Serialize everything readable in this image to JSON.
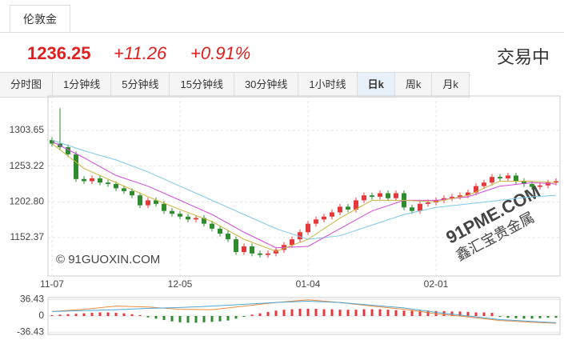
{
  "header": {
    "tab": "伦敦金",
    "price": "1236.25",
    "change": "+11.26",
    "change_pct": "+0.91%",
    "status": "交易中"
  },
  "tabs": [
    "分时图",
    "1分钟线",
    "5分钟线",
    "15分钟线",
    "30分钟线",
    "1小时线",
    "日k",
    "周k",
    "月k"
  ],
  "active_tab": 6,
  "chart_data": [
    {
      "type": "candlestick",
      "up_color": "#e4393c",
      "down_color": "#2e8b2e",
      "categories": [
        "11-07",
        null,
        null,
        null,
        null,
        null,
        null,
        null,
        null,
        null,
        null,
        null,
        null,
        null,
        null,
        null,
        "12-05",
        null,
        null,
        null,
        null,
        null,
        null,
        null,
        null,
        null,
        null,
        null,
        null,
        null,
        null,
        null,
        "01-04",
        null,
        null,
        null,
        null,
        null,
        null,
        null,
        null,
        null,
        null,
        null,
        null,
        null,
        null,
        null,
        "02-01",
        null,
        null,
        null,
        null,
        null,
        null,
        null,
        null,
        null,
        null,
        null,
        null,
        null,
        null,
        null
      ],
      "open": [
        1290,
        1285,
        1280,
        1270,
        1235,
        1232,
        1236,
        1230,
        1228,
        1222,
        1218,
        1212,
        1198,
        1205,
        1200,
        1190,
        1186,
        1182,
        1178,
        1180,
        1172,
        1165,
        1158,
        1150,
        1132,
        1140,
        1130,
        1128,
        1130,
        1135,
        1142,
        1150,
        1160,
        1172,
        1178,
        1182,
        1188,
        1196,
        1192,
        1205,
        1212,
        1210,
        1215,
        1208,
        1215,
        1195,
        1190,
        1200,
        1202,
        1205,
        1208,
        1210,
        1212,
        1216,
        1225,
        1230,
        1238,
        1236,
        1240,
        1232,
        1228,
        1224,
        1226,
        1230
      ],
      "close": [
        1285,
        1280,
        1270,
        1235,
        1232,
        1236,
        1230,
        1228,
        1222,
        1218,
        1212,
        1198,
        1205,
        1200,
        1190,
        1186,
        1182,
        1178,
        1180,
        1172,
        1165,
        1158,
        1150,
        1132,
        1140,
        1130,
        1128,
        1130,
        1135,
        1142,
        1150,
        1160,
        1172,
        1178,
        1182,
        1188,
        1196,
        1192,
        1205,
        1212,
        1210,
        1215,
        1208,
        1215,
        1195,
        1190,
        1200,
        1202,
        1205,
        1208,
        1210,
        1212,
        1216,
        1225,
        1230,
        1238,
        1236,
        1240,
        1232,
        1228,
        1224,
        1226,
        1230,
        1232
      ],
      "high": [
        1294,
        1335,
        1284,
        1274,
        1239,
        1240,
        1240,
        1234,
        1232,
        1226,
        1222,
        1216,
        1209,
        1209,
        1204,
        1194,
        1190,
        1186,
        1184,
        1184,
        1176,
        1169,
        1162,
        1154,
        1144,
        1144,
        1134,
        1134,
        1139,
        1146,
        1154,
        1164,
        1176,
        1182,
        1186,
        1192,
        1200,
        1200,
        1209,
        1216,
        1216,
        1219,
        1219,
        1219,
        1219,
        1199,
        1204,
        1206,
        1209,
        1212,
        1214,
        1216,
        1220,
        1229,
        1234,
        1242,
        1242,
        1244,
        1244,
        1236,
        1232,
        1230,
        1234,
        1236
      ],
      "low": [
        1281,
        1276,
        1266,
        1231,
        1228,
        1228,
        1226,
        1224,
        1218,
        1214,
        1208,
        1194,
        1194,
        1196,
        1186,
        1182,
        1178,
        1174,
        1174,
        1168,
        1161,
        1154,
        1146,
        1128,
        1128,
        1126,
        1124,
        1124,
        1126,
        1131,
        1138,
        1146,
        1156,
        1168,
        1174,
        1178,
        1184,
        1188,
        1188,
        1201,
        1206,
        1206,
        1204,
        1204,
        1191,
        1186,
        1186,
        1196,
        1198,
        1201,
        1204,
        1206,
        1208,
        1212,
        1221,
        1226,
        1232,
        1232,
        1228,
        1224,
        1220,
        1220,
        1222,
        1226
      ],
      "lines": [
        {
          "color": "#7ec8ec",
          "x": [
            0,
            4,
            8,
            12,
            16,
            20,
            24,
            28,
            32,
            36,
            40,
            44,
            48,
            52,
            56,
            60,
            63
          ],
          "values": [
            1290,
            1275,
            1262,
            1245,
            1225,
            1205,
            1185,
            1165,
            1150,
            1155,
            1170,
            1185,
            1195,
            1200,
            1205,
            1210,
            1212
          ]
        },
        {
          "color": "#d24ad8",
          "x": [
            0,
            4,
            8,
            12,
            16,
            20,
            24,
            28,
            32,
            36,
            40,
            44,
            48,
            52,
            56,
            60,
            63
          ],
          "values": [
            1288,
            1265,
            1240,
            1225,
            1205,
            1185,
            1160,
            1138,
            1140,
            1165,
            1190,
            1205,
            1205,
            1210,
            1225,
            1230,
            1228
          ]
        },
        {
          "color": "#c8b43c",
          "x": [
            0,
            4,
            8,
            12,
            16,
            20,
            24,
            28,
            32,
            36,
            40,
            44,
            48,
            52,
            56,
            60,
            63
          ],
          "values": [
            1285,
            1250,
            1230,
            1210,
            1192,
            1175,
            1150,
            1133,
            1150,
            1180,
            1205,
            1205,
            1203,
            1212,
            1232,
            1232,
            1230
          ]
        }
      ],
      "ylim": [
        1098.2,
        1352.2
      ],
      "yticks": [
        1152.37,
        {
          "value": 1202.8,
          "label": "1202.80"
        },
        1253.22,
        1303.65
      ],
      "grid": true,
      "watermarks": [
        "© 91GUOXIN.COM",
        "91PME.COM",
        "鑫汇宝贵金属"
      ]
    },
    {
      "type": "macd",
      "up_color": "#e4393c",
      "down_color": "#2e8b2e",
      "values": [
        2,
        3,
        4,
        5,
        6,
        7,
        8,
        8,
        7,
        6,
        4,
        2,
        -3,
        -6,
        -9,
        -12,
        -14,
        -15,
        -15,
        -14,
        -13,
        -12,
        -10,
        -6,
        -2,
        3,
        6,
        9,
        12,
        14,
        15,
        16,
        16,
        16,
        15,
        15,
        14,
        14,
        14,
        15,
        15,
        15,
        14,
        13,
        12,
        12,
        12,
        12,
        11,
        11,
        10,
        10,
        9,
        8,
        8,
        7,
        -2,
        -4,
        -5,
        -6,
        -6,
        -5,
        -4,
        -4
      ],
      "lines": [
        {
          "color": "#f08c3c",
          "x": [
            0,
            4,
            8,
            12,
            16,
            20,
            24,
            28,
            32,
            36,
            40,
            44,
            48,
            52,
            56,
            60,
            63
          ],
          "values": [
            10,
            15,
            22,
            20,
            15,
            14,
            22,
            30,
            36,
            30,
            22,
            15,
            5,
            -2,
            -10,
            -14,
            -16
          ]
        },
        {
          "color": "#4aa8d8",
          "x": [
            0,
            4,
            8,
            12,
            16,
            20,
            24,
            28,
            32,
            36,
            40,
            44,
            48,
            52,
            56,
            60,
            63
          ],
          "values": [
            10,
            12,
            14,
            17,
            19,
            22,
            26,
            30,
            33,
            30,
            24,
            18,
            8,
            0,
            -8,
            -12,
            -15
          ]
        }
      ],
      "ylim": [
        -41,
        41
      ],
      "yticks": [
        -36.43,
        0,
        36.43
      ]
    }
  ]
}
